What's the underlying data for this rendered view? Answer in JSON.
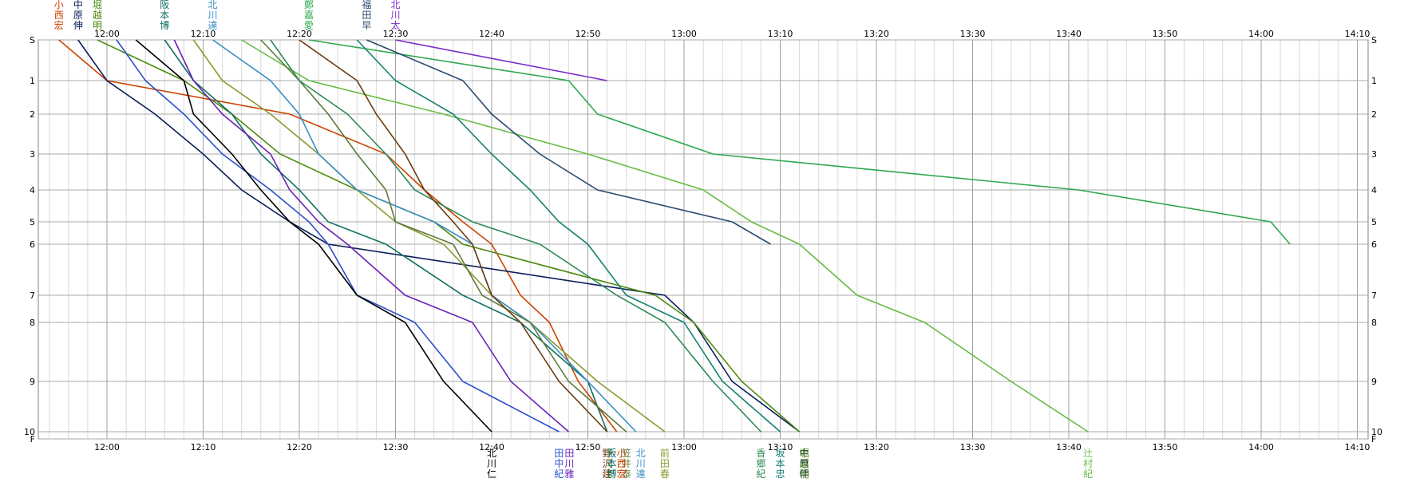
{
  "chart_data": {
    "type": "line",
    "x_axis": {
      "ticks": [
        "12:00",
        "12:10",
        "12:20",
        "12:30",
        "12:40",
        "12:50",
        "13:00",
        "13:10",
        "13:20",
        "13:30",
        "13:40",
        "13:50",
        "14:00",
        "14:10"
      ]
    },
    "y_axis": {
      "ticks": [
        "S",
        "1",
        "2",
        "3",
        "4",
        "5",
        "6",
        "7",
        "8",
        "9",
        "10",
        "F"
      ],
      "positions": [
        0,
        1,
        2,
        3,
        4,
        5,
        6,
        7,
        8,
        9,
        10,
        10.3
      ],
      "right_ticks": [
        "S",
        "1",
        "2",
        "3",
        "4",
        "5",
        "6",
        "7",
        "8",
        "9",
        "10",
        "F"
      ],
      "inverted": true
    },
    "grid": true,
    "series": [
      {
        "name": "小西宏",
        "color": "#cc4400",
        "labelPos": "top",
        "labelIndex": 0,
        "points": [
          [
            "11:55",
            "S"
          ],
          [
            "12:00",
            "1"
          ],
          [
            "12:19",
            "2"
          ],
          [
            "12:29",
            "3"
          ],
          [
            "12:33",
            "4"
          ],
          [
            "12:37",
            "5"
          ],
          [
            "12:40",
            "6"
          ],
          [
            "12:43",
            "7"
          ],
          [
            "12:46",
            "8"
          ],
          [
            "12:49",
            "9"
          ],
          [
            "12:53",
            "10"
          ]
        ]
      },
      {
        "name": "中原伸",
        "color": "#0a1e5a",
        "labelPos": "top",
        "labelIndex": 1,
        "points": [
          [
            "11:57",
            "S"
          ],
          [
            "12:00",
            "1"
          ],
          [
            "12:05",
            "2"
          ],
          [
            "12:10",
            "3"
          ],
          [
            "12:14",
            "4"
          ],
          [
            "12:19",
            "5"
          ],
          [
            "12:23",
            "6"
          ],
          [
            "12:58",
            "7"
          ],
          [
            "13:01",
            "8"
          ],
          [
            "13:05",
            "9"
          ],
          [
            "13:12",
            "10"
          ]
        ]
      },
      {
        "name": "堀越明",
        "color": "#4f8a10",
        "labelPos": "top",
        "labelIndex": 2,
        "points": [
          [
            "11:59",
            "S"
          ],
          [
            "12:08",
            "1"
          ],
          [
            "12:13",
            "2"
          ],
          [
            "12:18",
            "3"
          ],
          [
            "12:26",
            "4"
          ],
          [
            "12:34",
            "5"
          ],
          [
            "12:37",
            "6"
          ],
          [
            "12:57",
            "7"
          ],
          [
            "13:01",
            "8"
          ],
          [
            "13:06",
            "9"
          ],
          [
            "13:12",
            "10"
          ]
        ]
      },
      {
        "name": "田中紀",
        "color": "#2b4fcc",
        "labelPos": "bottom",
        "labelIndex": 0,
        "points": [
          [
            "12:01",
            "S"
          ],
          [
            "12:04",
            "1"
          ],
          [
            "12:08",
            "2"
          ],
          [
            "12:12",
            "3"
          ],
          [
            "12:17",
            "4"
          ],
          [
            "12:21",
            "5"
          ],
          [
            "12:23",
            "6"
          ],
          [
            "12:26",
            "7"
          ],
          [
            "12:32",
            "8"
          ],
          [
            "12:37",
            "9"
          ],
          [
            "12:47",
            "10"
          ]
        ]
      },
      {
        "name": "北川仁",
        "color": "#000000",
        "labelPos": "bottom",
        "labelIndex": 0,
        "points": [
          [
            "12:03",
            "S"
          ],
          [
            "12:08",
            "1"
          ],
          [
            "12:09",
            "2"
          ],
          [
            "12:13",
            "3"
          ],
          [
            "12:16",
            "4"
          ],
          [
            "12:19",
            "5"
          ],
          [
            "12:22",
            "6"
          ],
          [
            "12:26",
            "7"
          ],
          [
            "12:31",
            "8"
          ],
          [
            "12:35",
            "9"
          ],
          [
            "12:40",
            "10"
          ]
        ]
      },
      {
        "name": "阪本博",
        "color": "#0e7060",
        "labelPos": "top",
        "labelIndex": 0,
        "points": [
          [
            "12:06",
            "S"
          ],
          [
            "12:09",
            "1"
          ],
          [
            "12:13",
            "2"
          ],
          [
            "12:16",
            "3"
          ],
          [
            "12:20",
            "4"
          ],
          [
            "12:23",
            "5"
          ],
          [
            "12:29",
            "6"
          ],
          [
            "12:37",
            "7"
          ],
          [
            "12:43",
            "8"
          ],
          [
            "12:50",
            "9"
          ],
          [
            "12:52",
            "10"
          ]
        ]
      },
      {
        "name": "田川雅",
        "color": "#6a22b8",
        "labelPos": "bottom",
        "labelIndex": 1,
        "points": [
          [
            "12:07",
            "S"
          ],
          [
            "12:09",
            "1"
          ],
          [
            "12:12",
            "2"
          ],
          [
            "12:17",
            "3"
          ],
          [
            "12:19",
            "4"
          ],
          [
            "12:22",
            "5"
          ],
          [
            "12:25",
            "6"
          ],
          [
            "12:31",
            "7"
          ],
          [
            "12:38",
            "8"
          ],
          [
            "12:42",
            "9"
          ],
          [
            "12:48",
            "10"
          ]
        ]
      },
      {
        "name": "前田春",
        "color": "#8a9a2e",
        "labelPos": "bottom",
        "labelIndex": 0,
        "points": [
          [
            "12:09",
            "S"
          ],
          [
            "12:12",
            "1"
          ],
          [
            "12:17",
            "2"
          ],
          [
            "12:22",
            "3"
          ],
          [
            "12:26",
            "4"
          ],
          [
            "12:30",
            "5"
          ],
          [
            "12:35",
            "6"
          ],
          [
            "12:40",
            "7"
          ],
          [
            "12:44",
            "8"
          ],
          [
            "12:51",
            "9"
          ],
          [
            "12:58",
            "10"
          ]
        ]
      },
      {
        "name": "北川達",
        "color": "#3a8ec4",
        "labelPos": "top",
        "labelIndex": 1,
        "points": [
          [
            "12:11",
            "S"
          ],
          [
            "12:17",
            "1"
          ],
          [
            "12:20",
            "2"
          ],
          [
            "12:22",
            "3"
          ],
          [
            "12:26",
            "4"
          ],
          [
            "12:34",
            "5"
          ],
          [
            "12:38",
            "6"
          ],
          [
            "12:40",
            "7"
          ],
          [
            "12:44",
            "8"
          ],
          [
            "12:50",
            "9"
          ],
          [
            "12:55",
            "10"
          ]
        ]
      },
      {
        "name": "辻村紀",
        "color": "#66bb44",
        "labelPos": "bottom",
        "labelIndex": 0,
        "points": [
          [
            "12:14",
            "S"
          ],
          [
            "12:21",
            "1"
          ],
          [
            "12:35",
            "2"
          ],
          [
            "12:50",
            "3"
          ],
          [
            "13:02",
            "4"
          ],
          [
            "13:07",
            "5"
          ],
          [
            "13:12",
            "6"
          ],
          [
            "13:18",
            "7"
          ],
          [
            "13:25",
            "8"
          ],
          [
            "13:34",
            "9"
          ],
          [
            "13:42",
            "10"
          ]
        ]
      },
      {
        "name": "笠井泰",
        "color": "#5a7a3a",
        "labelPos": "bottom",
        "labelIndex": 1,
        "points": [
          [
            "12:16",
            "S"
          ],
          [
            "12:20",
            "1"
          ],
          [
            "12:23",
            "2"
          ],
          [
            "12:26",
            "3"
          ],
          [
            "12:29",
            "4"
          ],
          [
            "12:30",
            "5"
          ],
          [
            "12:36",
            "6"
          ],
          [
            "12:39",
            "7"
          ],
          [
            "12:44",
            "8"
          ],
          [
            "12:48",
            "9"
          ],
          [
            "12:54",
            "10"
          ]
        ]
      },
      {
        "name": "香郷紀",
        "color": "#2e8b57",
        "labelPos": "bottom",
        "labelIndex": 0,
        "points": [
          [
            "12:17",
            "S"
          ],
          [
            "12:20",
            "1"
          ],
          [
            "12:25",
            "2"
          ],
          [
            "12:29",
            "3"
          ],
          [
            "12:32",
            "4"
          ],
          [
            "12:38",
            "5"
          ],
          [
            "12:45",
            "6"
          ],
          [
            "12:53",
            "7"
          ],
          [
            "12:58",
            "8"
          ],
          [
            "13:03",
            "9"
          ],
          [
            "13:08",
            "10"
          ]
        ]
      },
      {
        "name": "野沢建",
        "color": "#6b3a0e",
        "labelPos": "bottom",
        "labelIndex": 1,
        "points": [
          [
            "12:20",
            "S"
          ],
          [
            "12:26",
            "1"
          ],
          [
            "12:28",
            "2"
          ],
          [
            "12:31",
            "3"
          ],
          [
            "12:33",
            "4"
          ],
          [
            "12:36",
            "5"
          ],
          [
            "12:38",
            "6"
          ],
          [
            "12:40",
            "7"
          ],
          [
            "12:43",
            "8"
          ],
          [
            "12:47",
            "9"
          ],
          [
            "12:52",
            "10"
          ]
        ]
      },
      {
        "name": "鄭嘉愛",
        "color": "#30a850",
        "labelPos": "top",
        "labelIndex": 1,
        "points": [
          [
            "12:21",
            "S"
          ],
          [
            "12:48",
            "1"
          ],
          [
            "12:51",
            "2"
          ],
          [
            "13:03",
            "3"
          ],
          [
            "13:41",
            "4"
          ],
          [
            "14:01",
            "5"
          ],
          [
            "14:03",
            "6"
          ]
        ]
      },
      {
        "name": "坂本忠",
        "color": "#148070",
        "labelPos": "bottom",
        "labelIndex": 0,
        "points": [
          [
            "12:26",
            "S"
          ],
          [
            "12:30",
            "1"
          ],
          [
            "12:36",
            "2"
          ],
          [
            "12:40",
            "3"
          ],
          [
            "12:44",
            "4"
          ],
          [
            "12:47",
            "5"
          ],
          [
            "12:50",
            "6"
          ],
          [
            "12:54",
            "7"
          ],
          [
            "13:00",
            "8"
          ],
          [
            "13:04",
            "9"
          ],
          [
            "13:10",
            "10"
          ]
        ]
      },
      {
        "name": "福田早",
        "color": "#2a4a6e",
        "labelPos": "top",
        "labelIndex": 0,
        "points": [
          [
            "12:27",
            "S"
          ],
          [
            "12:37",
            "1"
          ],
          [
            "12:40",
            "2"
          ],
          [
            "12:45",
            "3"
          ],
          [
            "12:51",
            "4"
          ],
          [
            "13:05",
            "5"
          ],
          [
            "13:09",
            "6"
          ]
        ]
      },
      {
        "name": "北川太",
        "color": "#7a2ccc",
        "labelPos": "top",
        "labelIndex": 1,
        "points": [
          [
            "12:30",
            "S"
          ],
          [
            "12:52",
            "1"
          ]
        ]
      }
    ]
  }
}
